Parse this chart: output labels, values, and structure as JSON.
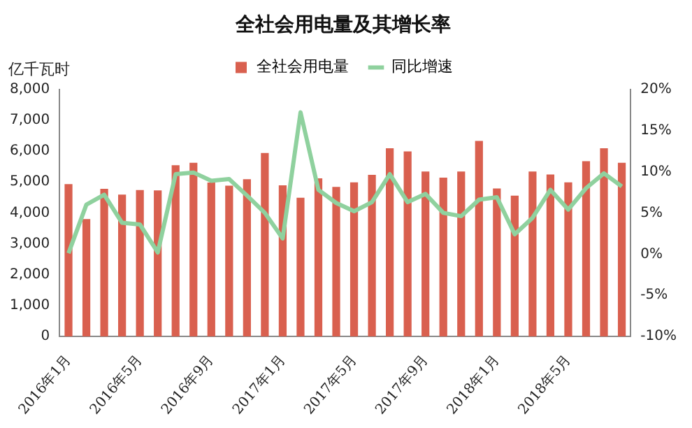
{
  "chart_data": {
    "type": "bar",
    "title": "全社会用电量及其增长率",
    "ylabel": "亿千瓦时",
    "categories": [
      "2016年1月",
      null,
      null,
      null,
      "2016年5月",
      null,
      null,
      null,
      "2016年9月",
      null,
      null,
      null,
      "2017年1月",
      null,
      null,
      null,
      "2017年5月",
      null,
      null,
      null,
      "2017年9月",
      null,
      null,
      null,
      "2018年1月",
      null,
      null,
      null,
      "2018年5月",
      null,
      null,
      null
    ],
    "series": [
      {
        "name": "全社会用电量",
        "color": "#d9604f",
        "values": [
          4930,
          3800,
          4780,
          4590,
          4740,
          4730,
          5540,
          5620,
          4980,
          4880,
          5090,
          5940,
          4890,
          4490,
          5120,
          4840,
          4990,
          5230,
          6090,
          5990,
          5340,
          5140,
          5340,
          6330,
          4790,
          4560,
          5340,
          5240,
          4990,
          5670,
          6090,
          5620
        ]
      },
      {
        "name": "同比增速",
        "type": "line",
        "axis": "y2",
        "color": "#8fd19e",
        "values": [
          0.1,
          6.0,
          7.2,
          3.8,
          3.6,
          0.2,
          9.7,
          9.9,
          8.9,
          9.1,
          7.1,
          5.0,
          1.9,
          17.2,
          7.8,
          6.2,
          5.2,
          6.3,
          9.7,
          6.3,
          7.3,
          5.0,
          4.6,
          6.6,
          6.9,
          2.4,
          4.4,
          7.8,
          5.4,
          8.0,
          9.8,
          8.2
        ]
      }
    ],
    "ylim": [
      0,
      8000
    ],
    "yticks": [
      0,
      {
        "value": 1000,
        "label": "1,000"
      },
      {
        "value": 2000,
        "label": "2,000"
      },
      {
        "value": 3000,
        "label": "3,000"
      },
      {
        "value": 4000,
        "label": "4,000"
      },
      {
        "value": 5000,
        "label": "5,000"
      },
      {
        "value": 6000,
        "label": "6,000"
      },
      {
        "value": 7000,
        "label": "7,000"
      },
      {
        "value": 8000,
        "label": "8,000"
      }
    ],
    "y2lim": [
      -10,
      20
    ],
    "y2ticks": [
      {
        "value": -10,
        "label": "-10%"
      },
      {
        "value": -5,
        "label": "-5%"
      },
      {
        "value": 0,
        "label": "0%"
      },
      {
        "value": 5,
        "label": "5%"
      },
      {
        "value": 10,
        "label": "10%"
      },
      {
        "value": 15,
        "label": "15%"
      },
      {
        "value": 20,
        "label": "20%"
      }
    ],
    "legend": "top",
    "marker": "none"
  }
}
